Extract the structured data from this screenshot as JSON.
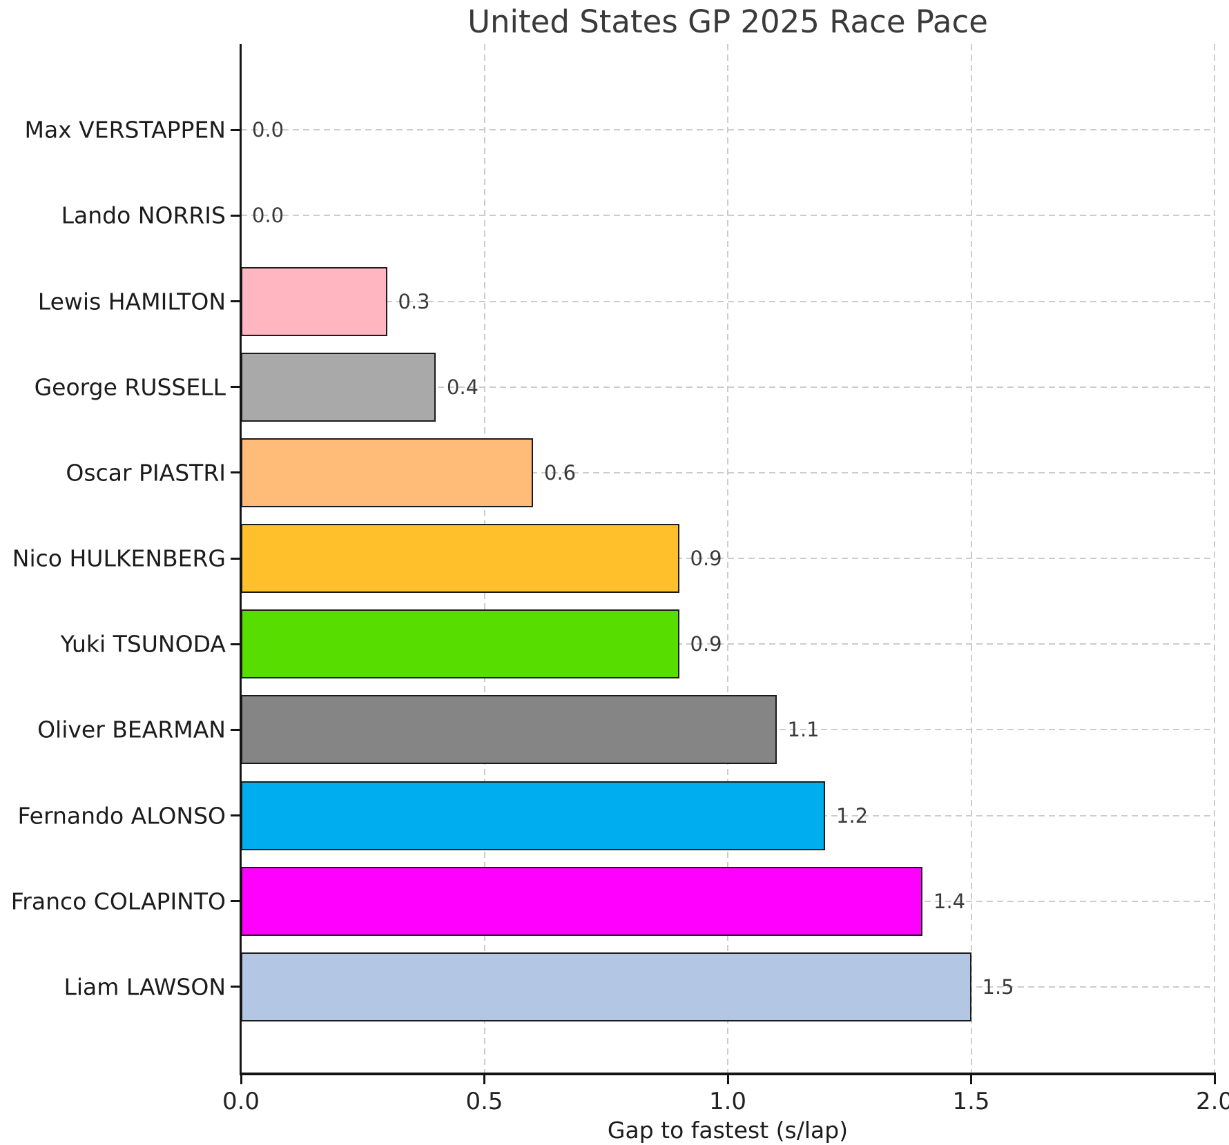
{
  "chart_data": {
    "type": "bar",
    "orientation": "horizontal",
    "title": "United States GP 2025 Race Pace",
    "xlabel": "Gap to fastest (s/lap)",
    "ylabel": "",
    "xlim": [
      0.0,
      2.0
    ],
    "xticks": [
      0.0,
      0.5,
      1.0,
      1.5,
      2.0
    ],
    "xtick_labels": [
      "0.0",
      "0.5",
      "1.0",
      "1.5",
      "2.0"
    ],
    "grid": "dashed, both axes, behind bars",
    "legend": "none",
    "bar_edge_color": "#1b1b1b",
    "grid_color": "#cccccc",
    "categories": [
      "Max VERSTAPPEN",
      "Lando NORRIS",
      "Lewis HAMILTON",
      "George RUSSELL",
      "Oscar PIASTRI",
      "Nico HULKENBERG",
      "Yuki TSUNODA",
      "Oliver BEARMAN",
      "Fernando ALONSO",
      "Franco COLAPINTO",
      "Liam LAWSON"
    ],
    "values": [
      0.0,
      0.0,
      0.3,
      0.4,
      0.6,
      0.9,
      0.9,
      1.1,
      1.2,
      1.4,
      1.5
    ],
    "value_labels": [
      "0.0",
      "0.0",
      "0.3",
      "0.4",
      "0.6",
      "0.9",
      "0.9",
      "1.1",
      "1.2",
      "1.4",
      "1.5"
    ],
    "colors": [
      null,
      null,
      "#FFB6C1",
      "#A9A9A9",
      "#FFBB78",
      "#FFC02B",
      "#58DD00",
      "#858585",
      "#00AEEF",
      "#FF00FF",
      "#B3C6E3"
    ]
  }
}
